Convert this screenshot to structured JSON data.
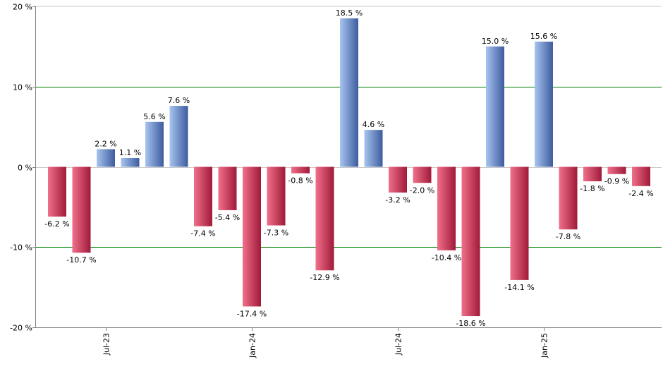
{
  "chart_data": {
    "type": "bar",
    "title": "",
    "xlabel": "",
    "ylabel": "",
    "ylim": [
      -20,
      20
    ],
    "y_ticks": [
      20,
      10,
      0,
      -10,
      -20
    ],
    "y_tick_suffix": " %",
    "value_label_suffix": " %",
    "grid": "horizontal lines at ±10 %",
    "legend": "none",
    "x_tick_labels": [
      {
        "label": "Jul-23",
        "index": 2
      },
      {
        "label": "Jan-24",
        "index": 8
      },
      {
        "label": "Jul-24",
        "index": 14
      },
      {
        "label": "Jan-25",
        "index": 20
      }
    ],
    "values": [
      -6.2,
      -10.7,
      2.2,
      1.1,
      5.6,
      7.6,
      -7.4,
      -5.4,
      -17.4,
      -7.3,
      -0.8,
      -12.9,
      18.5,
      4.6,
      -3.2,
      -2.0,
      -10.4,
      -18.6,
      15.0,
      -14.1,
      15.6,
      -7.8,
      -1.8,
      -0.9,
      -2.4
    ],
    "colors": {
      "positive_light": "#a8c4f0",
      "positive_dark": "#3d5c9e",
      "negative_light": "#f0708a",
      "negative_dark": "#a01a3a",
      "gridline": "#008000",
      "axis": "#808080"
    }
  }
}
